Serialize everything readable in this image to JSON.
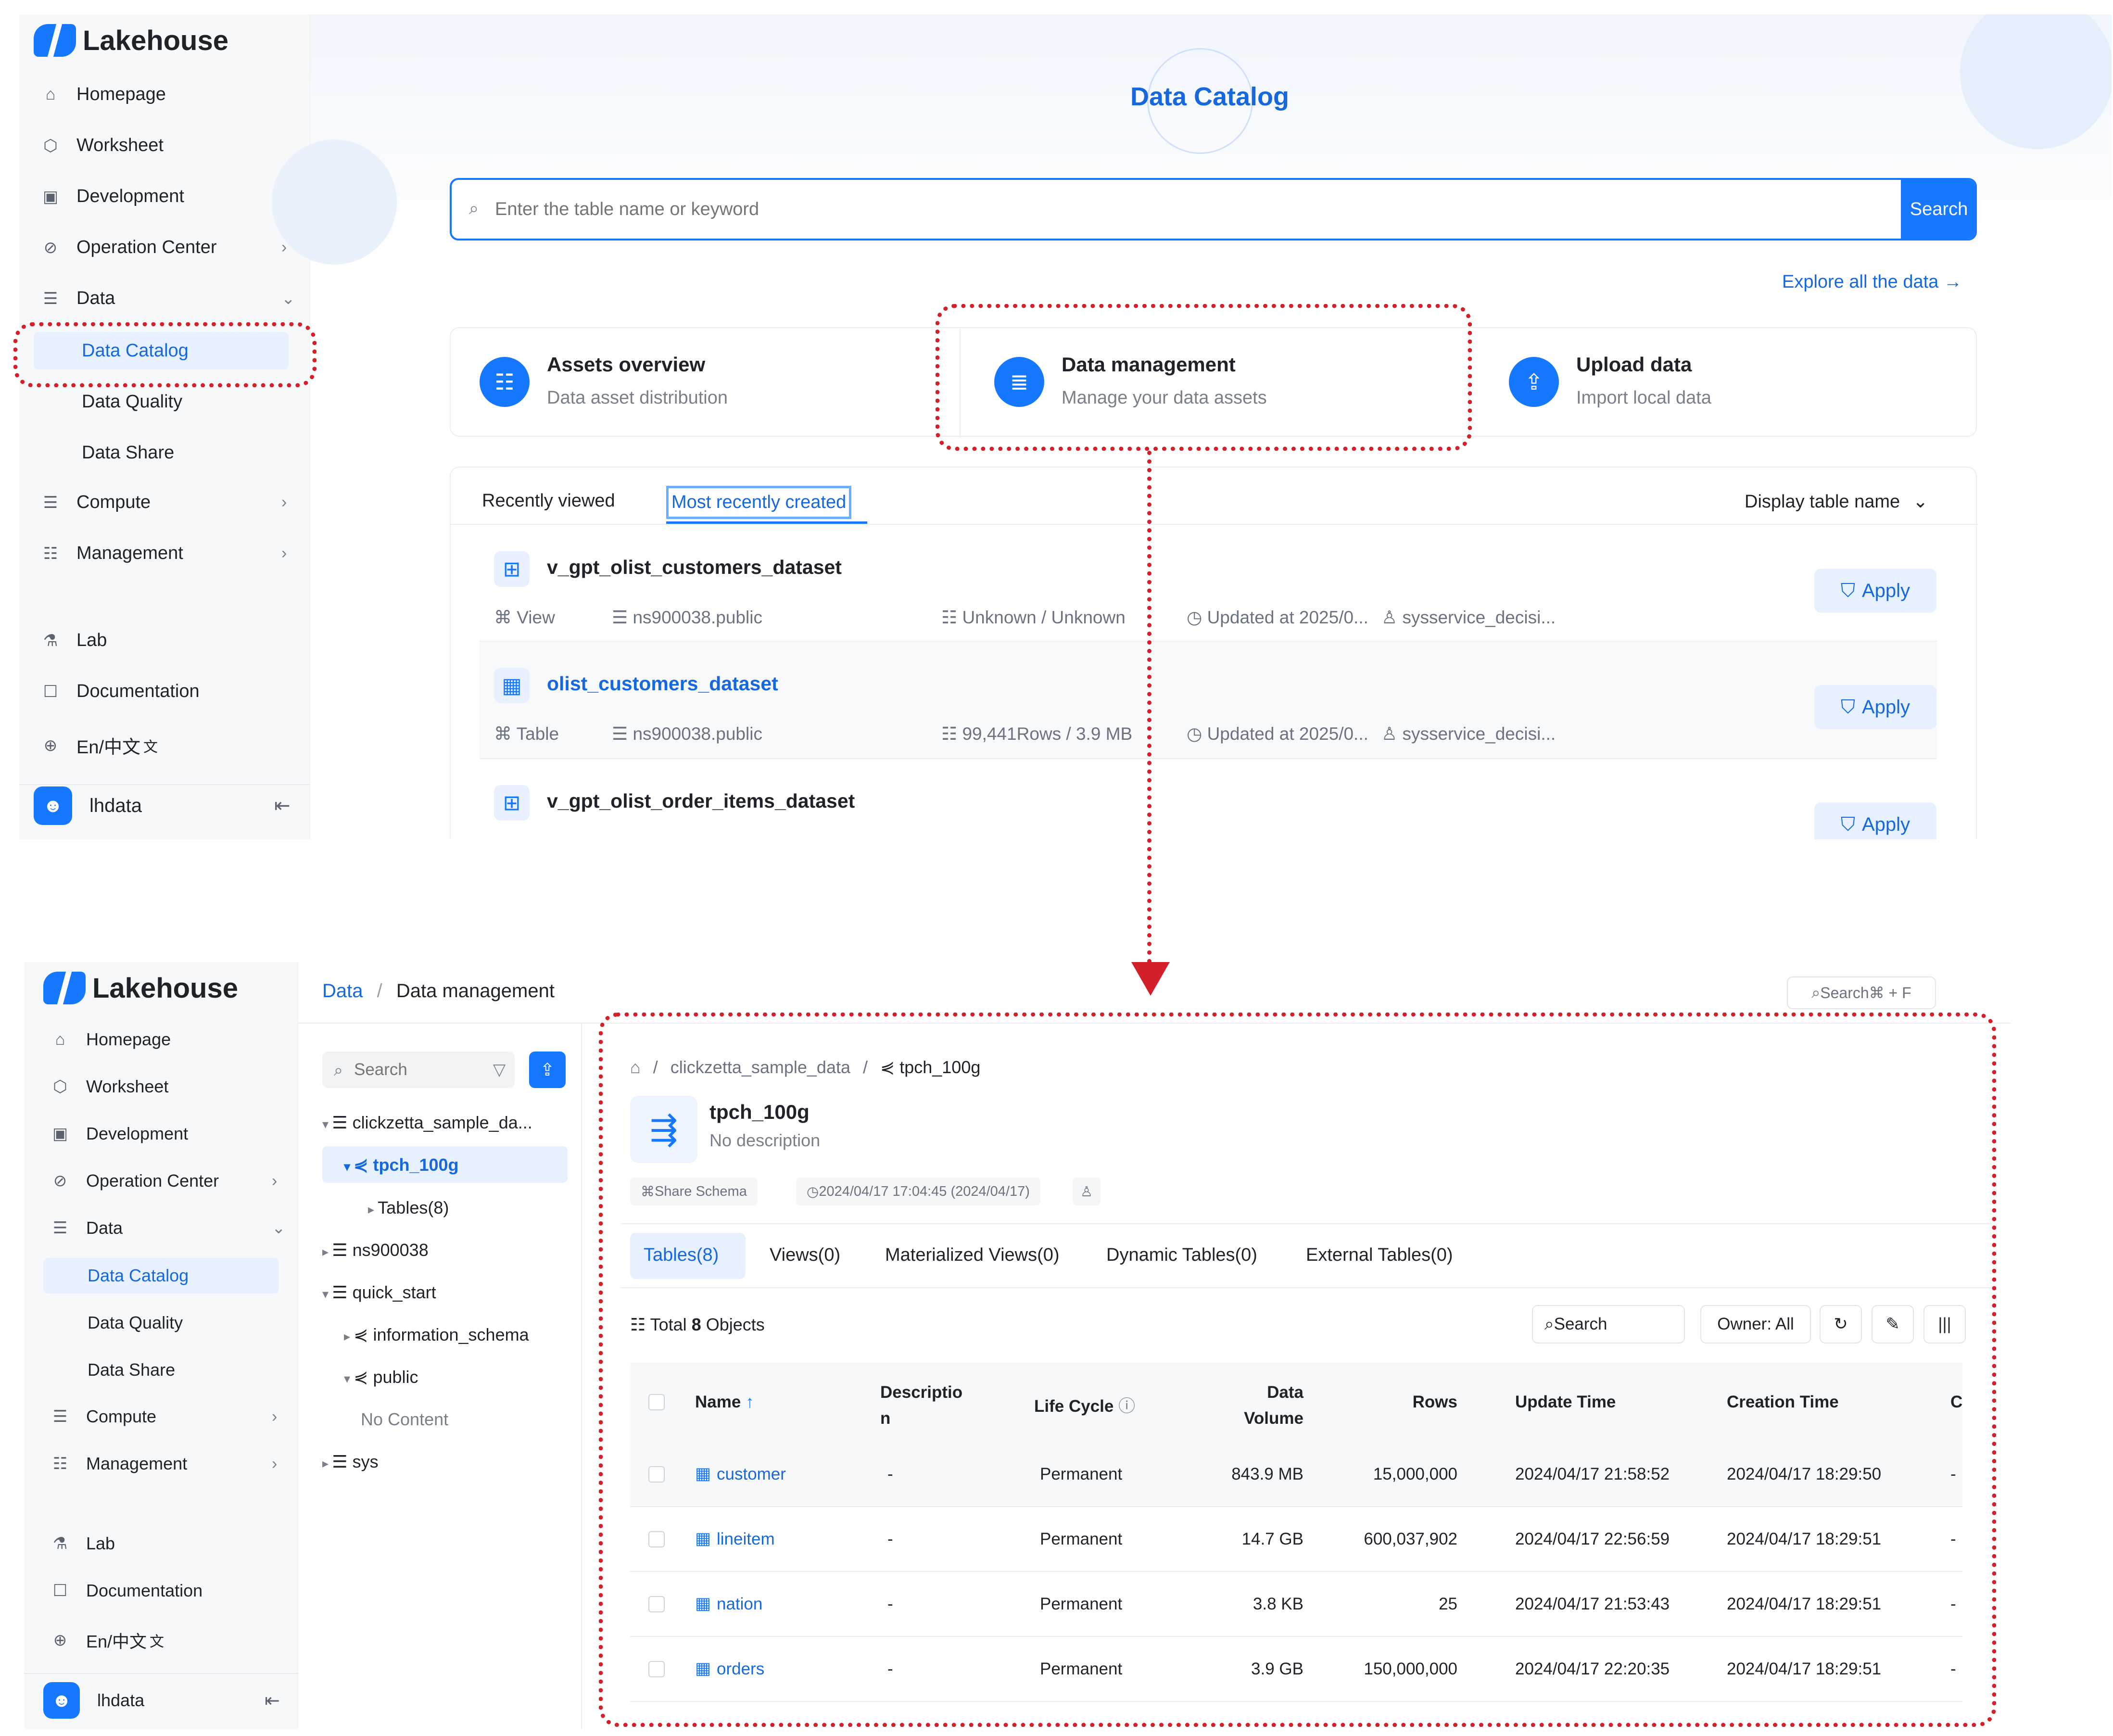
{
  "app": {
    "name": "Lakehouse"
  },
  "sidebar": {
    "items": [
      {
        "label": "Homepage",
        "icon": "home-icon"
      },
      {
        "label": "Worksheet",
        "icon": "cube-icon"
      },
      {
        "label": "Development",
        "icon": "terminal-icon"
      },
      {
        "label": "Operation Center",
        "icon": "satellite-icon"
      },
      {
        "label": "Data",
        "icon": "database-icon"
      },
      {
        "label": "Compute",
        "icon": "compute-icon"
      },
      {
        "label": "Management",
        "icon": "server-icon"
      },
      {
        "label": "Lab",
        "icon": "flask-icon"
      },
      {
        "label": "Documentation",
        "icon": "book-icon"
      },
      {
        "label": "En/中文",
        "icon": "globe-icon"
      }
    ],
    "data_subitems": [
      "Data Catalog",
      "Data Quality",
      "Data Share"
    ],
    "user": "lhdata"
  },
  "catalog": {
    "title": "Data Catalog",
    "search_placeholder": "Enter the table name or keyword",
    "search_button": "Search",
    "explore_link": "Explore all the data",
    "cards": [
      {
        "title": "Assets overview",
        "subtitle": "Data asset distribution",
        "icon": "list-icon"
      },
      {
        "title": "Data management",
        "subtitle": "Manage your data assets",
        "icon": "database-icon"
      },
      {
        "title": "Upload data",
        "subtitle": "Import local data",
        "icon": "upload-icon"
      }
    ],
    "tabs": [
      "Recently viewed",
      "Most recently created"
    ],
    "display_dropdown": "Display table name",
    "rows": [
      {
        "name": "v_gpt_olist_customers_dataset",
        "type": "View",
        "schema": "ns900038.public",
        "size": "Unknown / Unknown",
        "updated": "Updated at 2025/0...",
        "owner": "sysservice_decisi...",
        "apply": "Apply"
      },
      {
        "name": "olist_customers_dataset",
        "type": "Table",
        "schema": "ns900038.public",
        "size": "99,441Rows / 3.9 MB",
        "updated": "Updated at 2025/0...",
        "owner": "sysservice_decisi...",
        "apply": "Apply"
      },
      {
        "name": "v_gpt_olist_order_items_dataset",
        "type": "",
        "schema": "",
        "size": "",
        "updated": "",
        "owner": "",
        "apply": "Apply"
      }
    ]
  },
  "management": {
    "breadcrumb": {
      "root": "Data",
      "current": "Data management"
    },
    "global_search": "Search⌘ + F",
    "tree_search_placeholder": "Search",
    "tree": [
      {
        "label": "clickzetta_sample_da..."
      },
      {
        "label": "tpch_100g"
      },
      {
        "label": "Tables(8)"
      },
      {
        "label": "ns900038"
      },
      {
        "label": "quick_start"
      },
      {
        "label": "information_schema"
      },
      {
        "label": "public"
      },
      {
        "label": "No Content"
      },
      {
        "label": "sys"
      }
    ],
    "path": {
      "catalog": "clickzetta_sample_data",
      "schema": "tpch_100g"
    },
    "schema_title": "tpch_100g",
    "schema_desc": "No description",
    "tags": {
      "share": "Share Schema",
      "time": "2024/04/17 17:04:45 (2024/04/17)"
    },
    "tabs": [
      "Tables(8)",
      "Views(0)",
      "Materialized Views(0)",
      "Dynamic Tables(0)",
      "External Tables(0)"
    ],
    "total_prefix": "Total",
    "total_count": "8",
    "total_suffix": "Objects",
    "table_search": "Search",
    "owner_filter": "Owner: All",
    "columns": {
      "name": "Name",
      "desc_1": "Descriptio",
      "desc_2": "n",
      "lifecycle": "Life Cycle",
      "volume_1": "Data",
      "volume_2": "Volume",
      "rows": "Rows",
      "update": "Update Time",
      "creation": "Creation Time",
      "extra": "C"
    },
    "table_rows": [
      {
        "name": "customer",
        "desc": "-",
        "lifecycle": "Permanent",
        "volume": "843.9 MB",
        "rows": "15,000,000",
        "update": "2024/04/17 21:58:52",
        "creation": "2024/04/17 18:29:50",
        "extra": "-"
      },
      {
        "name": "lineitem",
        "desc": "-",
        "lifecycle": "Permanent",
        "volume": "14.7 GB",
        "rows": "600,037,902",
        "update": "2024/04/17 22:56:59",
        "creation": "2024/04/17 18:29:51",
        "extra": "-"
      },
      {
        "name": "nation",
        "desc": "-",
        "lifecycle": "Permanent",
        "volume": "3.8 KB",
        "rows": "25",
        "update": "2024/04/17 21:53:43",
        "creation": "2024/04/17 18:29:51",
        "extra": "-"
      },
      {
        "name": "orders",
        "desc": "-",
        "lifecycle": "Permanent",
        "volume": "3.9 GB",
        "rows": "150,000,000",
        "update": "2024/04/17 22:20:35",
        "creation": "2024/04/17 18:29:51",
        "extra": "-"
      }
    ]
  },
  "colors": {
    "accent": "#1677ff",
    "highlight": "#d4202a"
  }
}
